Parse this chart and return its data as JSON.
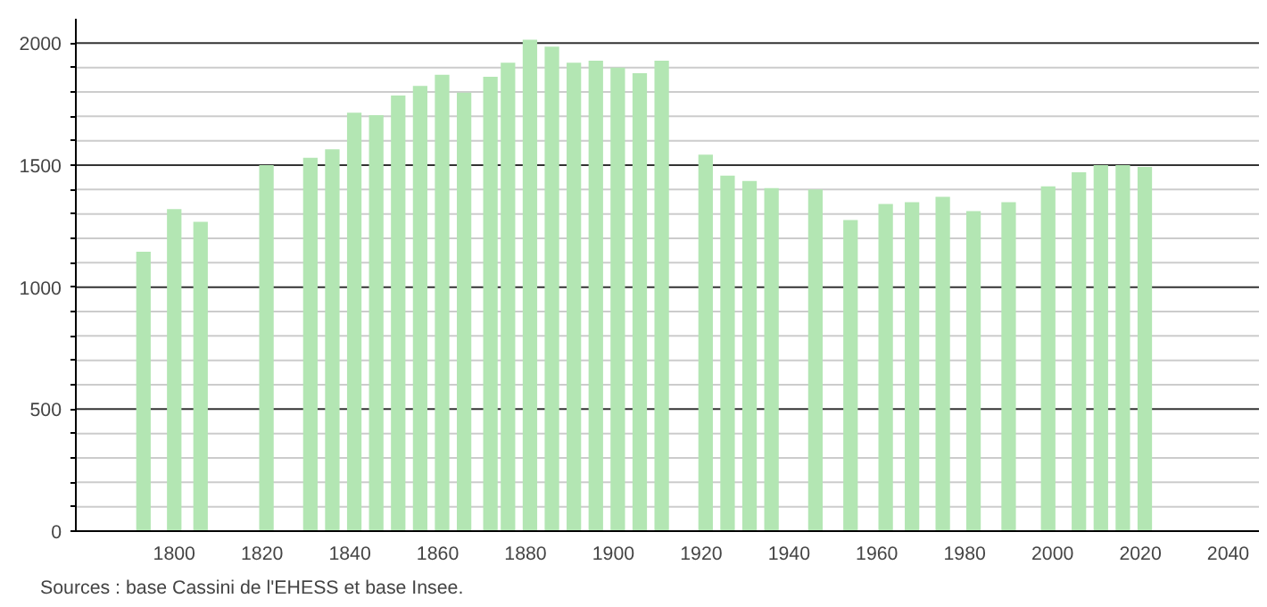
{
  "chart_data": {
    "type": "bar",
    "x": [
      1793,
      1800,
      1806,
      1821,
      1831,
      1836,
      1841,
      1846,
      1851,
      1856,
      1861,
      1866,
      1872,
      1876,
      1881,
      1886,
      1891,
      1896,
      1901,
      1906,
      1911,
      1921,
      1926,
      1931,
      1936,
      1946,
      1954,
      1962,
      1968,
      1975,
      1982,
      1990,
      1999,
      2006,
      2011,
      2016,
      2021
    ],
    "values": [
      1145,
      1320,
      1268,
      1500,
      1530,
      1565,
      1715,
      1705,
      1785,
      1825,
      1870,
      1797,
      1862,
      1920,
      2014,
      1986,
      1920,
      1928,
      1900,
      1877,
      1928,
      1543,
      1457,
      1435,
      1406,
      1400,
      1275,
      1341,
      1348,
      1370,
      1312,
      1348,
      1413,
      1471,
      1500,
      1500,
      1493
    ],
    "color": "#b3e6b3",
    "xlim": [
      1777.6,
      2047
    ],
    "xticks": [
      1800,
      1820,
      1840,
      1860,
      1880,
      1900,
      1920,
      1940,
      1960,
      1980,
      2000,
      2020,
      2040
    ],
    "ylim": [
      0,
      2100
    ],
    "yticks": [
      0,
      {
        "value": 100,
        "label": null
      },
      {
        "value": 200,
        "label": null
      },
      {
        "value": 300,
        "label": null
      },
      {
        "value": 400,
        "label": null
      },
      500,
      {
        "value": 600,
        "label": null
      },
      {
        "value": 700,
        "label": null
      },
      {
        "value": 800,
        "label": null
      },
      {
        "value": 900,
        "label": null
      },
      1000,
      {
        "value": 1100,
        "label": null
      },
      {
        "value": 1200,
        "label": null
      },
      {
        "value": 1300,
        "label": null
      },
      {
        "value": 1400,
        "label": null
      },
      1500,
      {
        "value": 1600,
        "label": null
      },
      {
        "value": 1700,
        "label": null
      },
      {
        "value": 1800,
        "label": null
      },
      {
        "value": 1900,
        "label": null
      },
      2000
    ],
    "grid": "y",
    "annotations": [
      "Sources : base Cassini de l'EHESS et base Insee."
    ]
  }
}
